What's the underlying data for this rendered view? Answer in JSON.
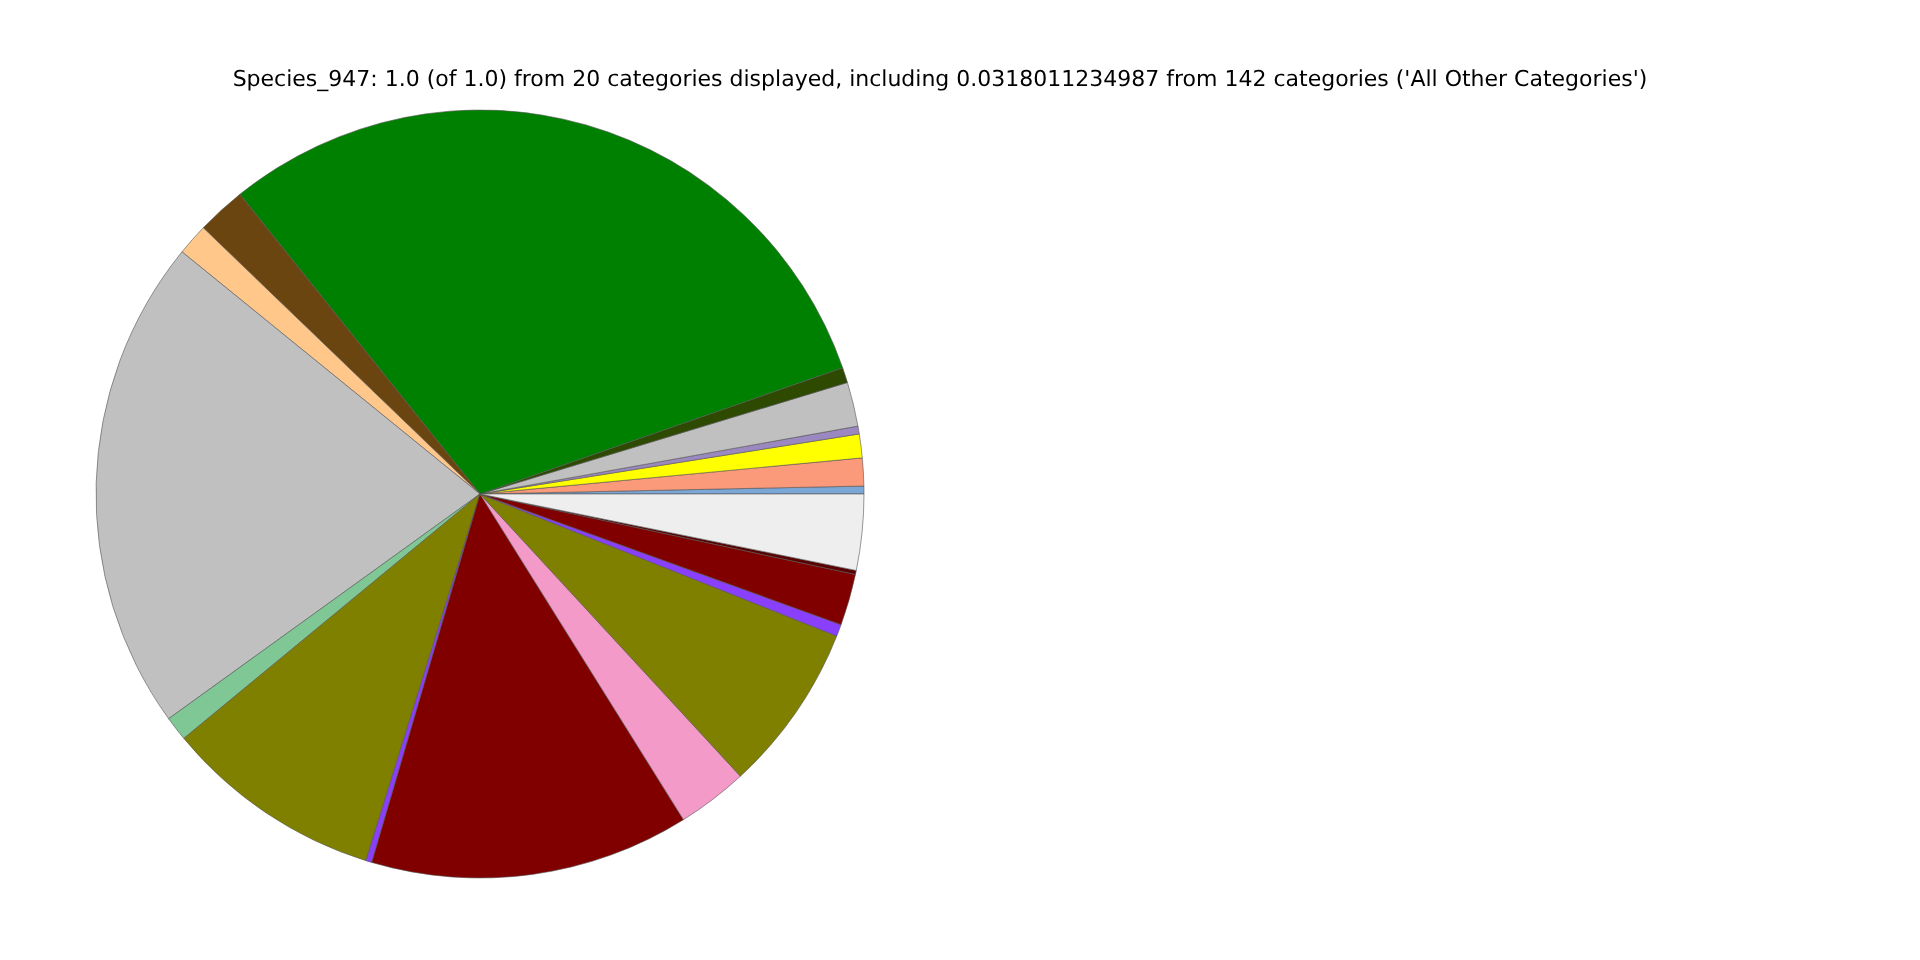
{
  "chart_data": {
    "type": "pie",
    "title": "Species_947: 1.0 (of 1.0) from 20 categories displayed, including 0.0318011234987 from 142 categories ('All Other Categories')",
    "categories": [
      null,
      null,
      null,
      null,
      null,
      null,
      null,
      null,
      null,
      null,
      null,
      null,
      null,
      null,
      null,
      null,
      null,
      null,
      null,
      null
    ],
    "values": [
      0.33,
      1.17,
      1.0,
      0.33,
      1.86,
      0.64,
      30.42,
      2.06,
      1.33,
      20.81,
      1.03,
      9.22,
      0.25,
      13.44,
      2.97,
      7.11,
      0.5,
      2.17,
      0.17,
      3.19
    ],
    "colors": [
      "#7ba7d7",
      "#fa9a7a",
      "#ffff00",
      "#9c88c0",
      "#c0c0c0",
      "#2d4a00",
      "#008000",
      "#6b4510",
      "#ffc88a",
      "#c0c0c0",
      "#7fc896",
      "#808000",
      "#8a3ffc",
      "#800000",
      "#f49ac8",
      "#808000",
      "#8a3ffc",
      "#800000",
      "#5a0000",
      "#eeeeee"
    ],
    "legend": false
  }
}
